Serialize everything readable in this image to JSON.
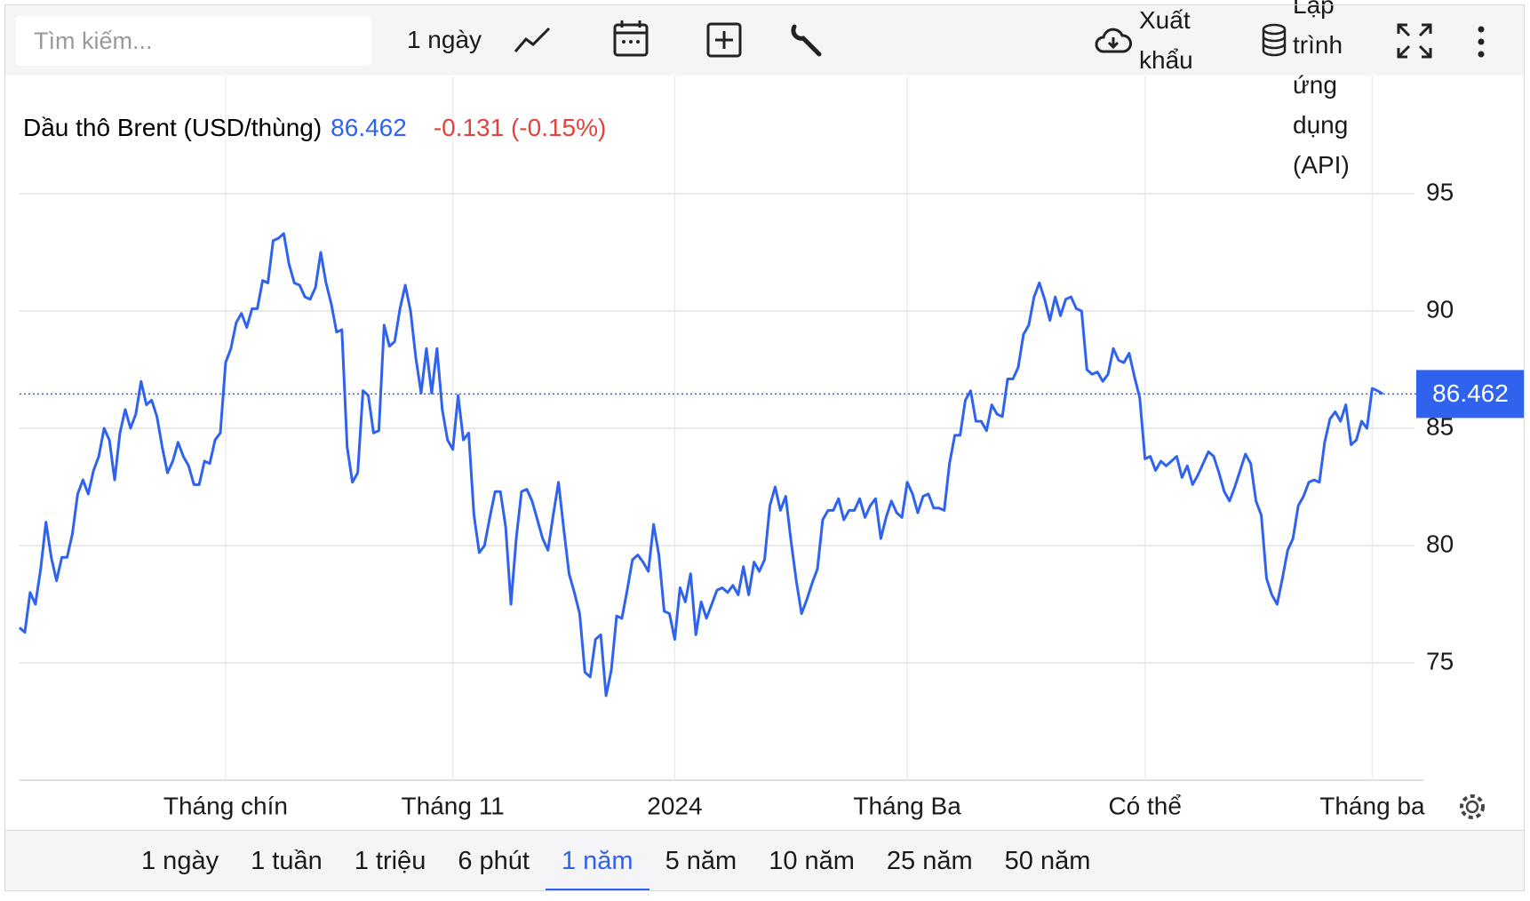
{
  "toolbar": {
    "search_placeholder": "Tìm kiếm...",
    "interval": "1 ngày",
    "export": "Xuất khẩu",
    "api": "Lập trình ứng dụng (API)"
  },
  "ranges": {
    "items": [
      "1 ngày",
      "1 tuần",
      "1 triệu",
      "6 phút",
      "1 năm",
      "5 năm",
      "10 năm",
      "25 năm",
      "50 năm"
    ],
    "active": 4
  },
  "chart_data": {
    "type": "line",
    "title": "Dầu thô Brent (USD/thùng)",
    "last": 86.462,
    "change": "-0.131 (-0.15%)",
    "color": "#2f63ee",
    "values": [
      76.5,
      76.3,
      78.0,
      77.5,
      79.0,
      81.0,
      79.5,
      78.5,
      79.5,
      79.5,
      80.5,
      82.2,
      82.8,
      82.2,
      83.2,
      83.8,
      85.0,
      84.5,
      82.8,
      84.8,
      85.8,
      85.0,
      85.6,
      87.0,
      86.0,
      86.2,
      85.5,
      84.2,
      83.1,
      83.6,
      84.4,
      83.8,
      83.4,
      82.6,
      82.6,
      83.6,
      83.5,
      84.5,
      84.8,
      87.8,
      88.4,
      89.5,
      89.9,
      89.3,
      90.1,
      90.1,
      91.3,
      91.2,
      93.0,
      93.1,
      93.3,
      92.0,
      91.2,
      91.1,
      90.6,
      90.5,
      91.0,
      92.5,
      91.2,
      90.3,
      89.1,
      89.2,
      84.2,
      82.7,
      83.1,
      86.6,
      86.4,
      84.8,
      84.9,
      89.4,
      88.5,
      88.7,
      90.1,
      91.1,
      90.0,
      88.0,
      86.5,
      88.4,
      86.5,
      88.4,
      85.8,
      84.5,
      84.1,
      86.4,
      84.5,
      84.8,
      81.3,
      79.7,
      80.0,
      81.2,
      82.3,
      82.3,
      80.8,
      77.5,
      80.3,
      82.3,
      82.4,
      81.9,
      81.1,
      80.3,
      79.8,
      81.3,
      82.7,
      80.7,
      78.8,
      78.0,
      77.1,
      74.6,
      74.4,
      76.0,
      76.2,
      73.6,
      74.7,
      77.0,
      76.9,
      78.1,
      79.4,
      79.6,
      79.3,
      78.9,
      80.9,
      79.6,
      77.2,
      77.1,
      76.0,
      78.2,
      77.6,
      78.8,
      76.2,
      77.6,
      76.9,
      77.5,
      78.1,
      78.2,
      78.0,
      78.3,
      77.9,
      79.1,
      77.9,
      79.3,
      78.9,
      79.4,
      81.7,
      82.5,
      81.5,
      82.1,
      80.2,
      78.5,
      77.1,
      77.7,
      78.4,
      79.0,
      81.1,
      81.5,
      81.5,
      82.0,
      81.1,
      81.5,
      81.5,
      82.0,
      81.2,
      81.7,
      82.0,
      80.3,
      81.2,
      81.9,
      81.4,
      81.2,
      82.7,
      82.2,
      81.4,
      82.1,
      82.2,
      81.6,
      81.6,
      81.5,
      83.5,
      84.7,
      84.7,
      86.2,
      86.6,
      85.3,
      85.3,
      84.9,
      86.0,
      85.6,
      85.5,
      87.1,
      87.1,
      87.6,
      89.0,
      89.4,
      90.6,
      91.2,
      90.5,
      89.6,
      90.6,
      89.8,
      90.5,
      90.6,
      90.1,
      90.0,
      87.5,
      87.3,
      87.4,
      87.0,
      87.3,
      88.4,
      87.9,
      87.8,
      88.2,
      87.2,
      86.3,
      83.7,
      83.8,
      83.2,
      83.6,
      83.4,
      83.6,
      83.8,
      82.9,
      83.4,
      82.6,
      83.0,
      83.5,
      84.0,
      83.8,
      83.1,
      82.3,
      81.9,
      82.5,
      83.2,
      83.9,
      83.5,
      81.9,
      81.3,
      78.6,
      77.9,
      77.5,
      78.6,
      79.8,
      80.3,
      81.7,
      82.1,
      82.7,
      82.8,
      82.7,
      84.4,
      85.4,
      85.7,
      85.3,
      86.0,
      84.3,
      84.5,
      85.3,
      85.0,
      86.7,
      86.6,
      86.462
    ],
    "xlim": [
      0,
      264
    ],
    "xticks": [
      {
        "value": 39,
        "label": "Tháng chín"
      },
      {
        "value": 82,
        "label": "Tháng 11"
      },
      {
        "value": 124,
        "label": "2024"
      },
      {
        "value": 168,
        "label": "Tháng Ba"
      },
      {
        "value": 213,
        "label": "Có thể"
      },
      {
        "value": 256,
        "label": "Tháng ba"
      }
    ],
    "ylim": [
      70,
      100
    ],
    "yticks": [
      75,
      80,
      85,
      90,
      95
    ],
    "grid": true
  }
}
